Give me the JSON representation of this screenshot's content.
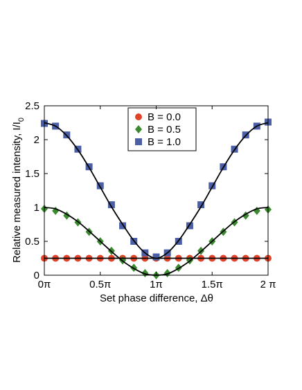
{
  "chart_data": {
    "type": "scatter",
    "xlabel": "Set phase difference, Δθ",
    "ylabel": "Relative measured intensity, I/I",
    "ylabel_sub": "0",
    "xlim": [
      0,
      2
    ],
    "ylim": [
      0,
      2.5
    ],
    "x_ticks": [
      0,
      0.5,
      1,
      1.5,
      2
    ],
    "x_tick_labels": [
      "0π",
      "0.5π",
      "1π",
      "1.5π",
      "2 π"
    ],
    "y_ticks": [
      0,
      0.5,
      1,
      1.5,
      2,
      2.5
    ],
    "y_tick_labels": [
      "0",
      "0.5",
      "1",
      "1.5",
      "2",
      "2.5"
    ],
    "legend_position": "top-center",
    "grid": false,
    "series": [
      {
        "name": "B = 0.0",
        "marker": "circle",
        "color": "#e0452a",
        "x": [
          0,
          0.1,
          0.2,
          0.3,
          0.4,
          0.5,
          0.6,
          0.7,
          0.8,
          0.9,
          1.0,
          1.1,
          1.2,
          1.3,
          1.4,
          1.5,
          1.6,
          1.7,
          1.8,
          1.9,
          2.0
        ],
        "y": [
          0.25,
          0.25,
          0.25,
          0.25,
          0.25,
          0.25,
          0.25,
          0.25,
          0.25,
          0.25,
          0.25,
          0.25,
          0.25,
          0.25,
          0.25,
          0.25,
          0.25,
          0.25,
          0.25,
          0.25,
          0.25
        ]
      },
      {
        "name": "B = 0.5",
        "marker": "diamond",
        "color": "#3a8a2e",
        "x": [
          0,
          0.1,
          0.2,
          0.3,
          0.4,
          0.5,
          0.6,
          0.7,
          0.8,
          0.9,
          1.0,
          1.1,
          1.2,
          1.3,
          1.4,
          1.5,
          1.6,
          1.7,
          1.8,
          1.9,
          2.0
        ],
        "y": [
          0.98,
          0.95,
          0.88,
          0.78,
          0.64,
          0.5,
          0.36,
          0.22,
          0.11,
          0.03,
          0.0,
          0.03,
          0.11,
          0.22,
          0.36,
          0.5,
          0.64,
          0.78,
          0.88,
          0.95,
          0.97
        ]
      },
      {
        "name": "B = 1.0",
        "marker": "square",
        "color": "#4b5fa6",
        "x": [
          0,
          0.1,
          0.2,
          0.3,
          0.4,
          0.5,
          0.6,
          0.7,
          0.8,
          0.9,
          1.0,
          1.1,
          1.2,
          1.3,
          1.4,
          1.5,
          1.6,
          1.7,
          1.8,
          1.9,
          2.0
        ],
        "y": [
          2.24,
          2.2,
          2.07,
          1.86,
          1.6,
          1.32,
          1.04,
          0.73,
          0.5,
          0.33,
          0.27,
          0.33,
          0.5,
          0.73,
          1.04,
          1.32,
          1.6,
          1.86,
          2.07,
          2.2,
          2.26
        ]
      }
    ],
    "fits": [
      {
        "x": [
          0,
          0.1,
          0.2,
          0.3,
          0.4,
          0.5,
          0.6,
          0.7,
          0.8,
          0.9,
          1.0,
          1.1,
          1.2,
          1.3,
          1.4,
          1.5,
          1.6,
          1.7,
          1.8,
          1.9,
          2.0
        ],
        "y": [
          0.25,
          0.25,
          0.25,
          0.25,
          0.25,
          0.25,
          0.25,
          0.25,
          0.25,
          0.25,
          0.25,
          0.25,
          0.25,
          0.25,
          0.25,
          0.25,
          0.25,
          0.25,
          0.25,
          0.25,
          0.25
        ]
      },
      {
        "x": [
          0,
          0.1,
          0.2,
          0.3,
          0.4,
          0.5,
          0.6,
          0.7,
          0.8,
          0.9,
          1.0,
          1.1,
          1.2,
          1.3,
          1.4,
          1.5,
          1.6,
          1.7,
          1.8,
          1.9,
          2.0
        ],
        "y": [
          1.0,
          0.98,
          0.9,
          0.79,
          0.65,
          0.5,
          0.35,
          0.21,
          0.1,
          0.02,
          0.0,
          0.02,
          0.1,
          0.21,
          0.35,
          0.5,
          0.65,
          0.79,
          0.9,
          0.98,
          1.0
        ]
      },
      {
        "x": [
          0,
          0.1,
          0.2,
          0.3,
          0.4,
          0.5,
          0.6,
          0.7,
          0.8,
          0.9,
          1.0,
          1.1,
          1.2,
          1.3,
          1.4,
          1.5,
          1.6,
          1.7,
          1.8,
          1.9,
          2.0
        ],
        "y": [
          2.25,
          2.2,
          2.06,
          1.85,
          1.59,
          1.3,
          1.01,
          0.75,
          0.51,
          0.33,
          0.25,
          0.33,
          0.51,
          0.75,
          1.01,
          1.3,
          1.59,
          1.85,
          2.06,
          2.2,
          2.25
        ]
      }
    ]
  }
}
